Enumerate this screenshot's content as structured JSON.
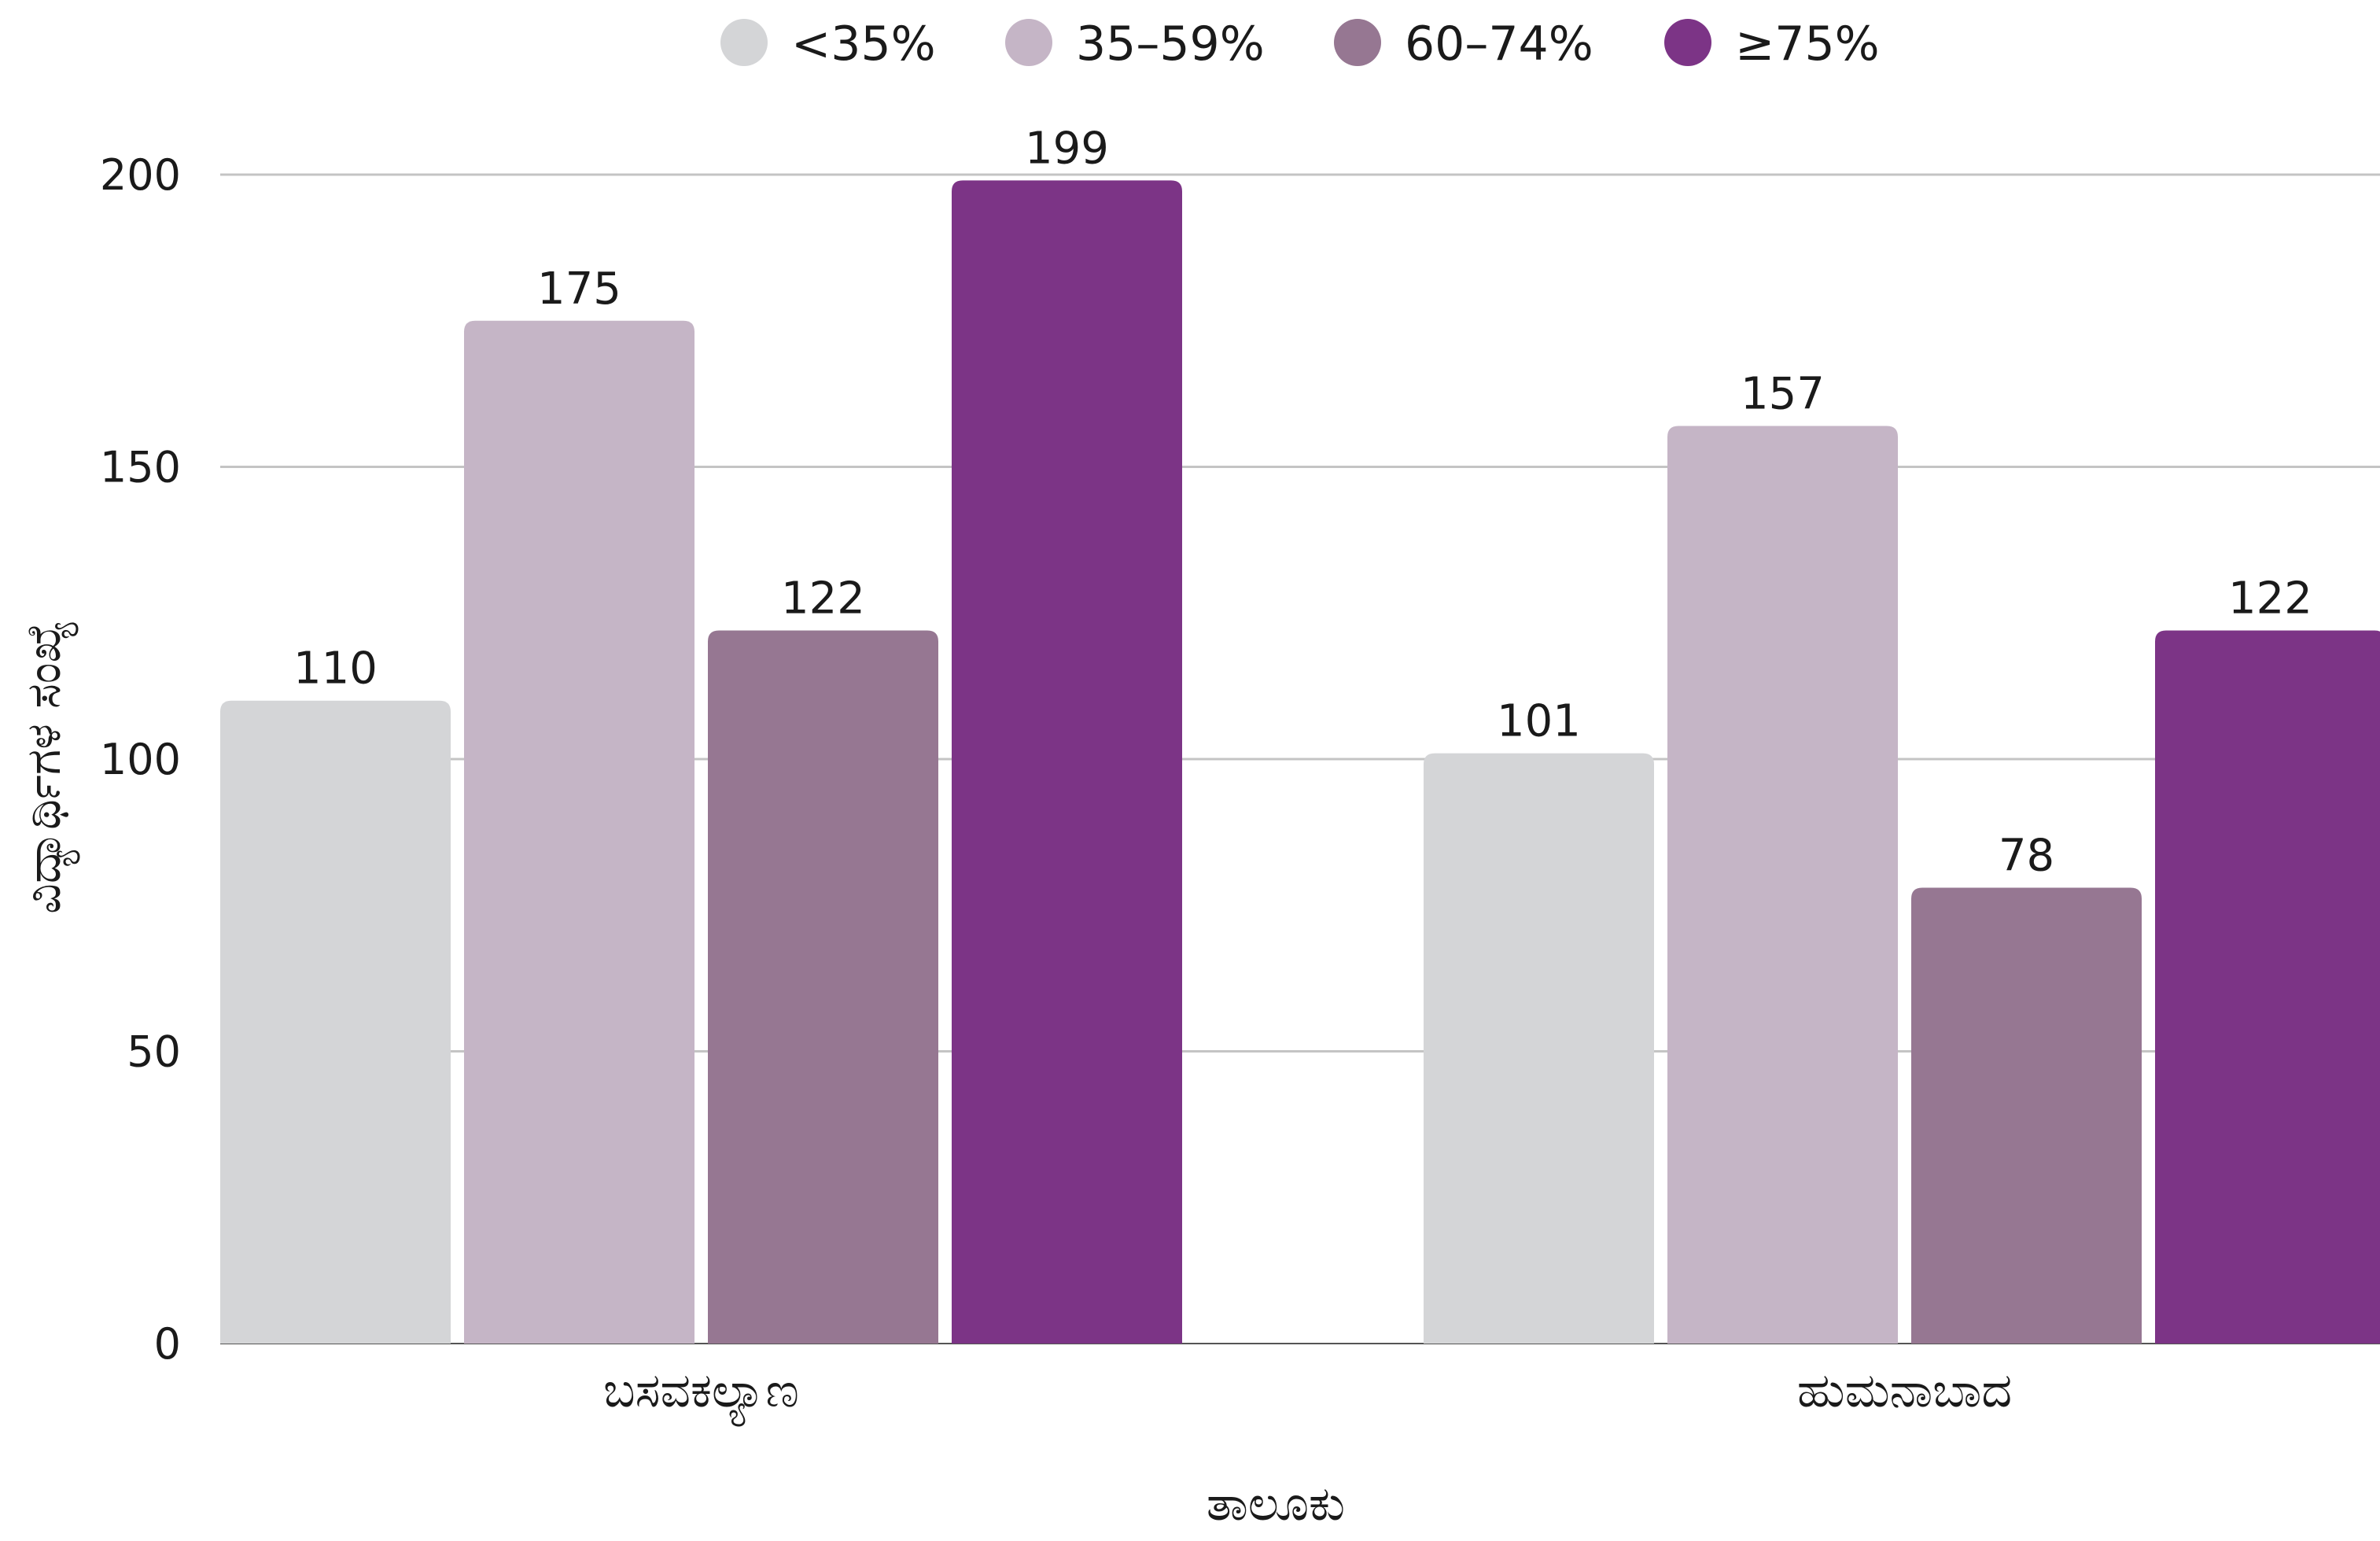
{
  "chart_data": {
    "type": "bar",
    "title": "",
    "xlabel": "ತಾಲೂಕು",
    "ylabel": "ವಿದ್ಯಾರ್ಥಿಗಳ ಸಂಖ್ಯೆ",
    "categories": [
      "ಬಸವಕಲ್ಯಾಣ",
      "ಹುಮನಾಬಾದ"
    ],
    "series": [
      {
        "name": "<35%",
        "color": "#d4d5d7",
        "values": [
          110,
          101
        ]
      },
      {
        "name": "35–59%",
        "color": "#c5b5c6",
        "values": [
          175,
          157
        ]
      },
      {
        "name": "60–74%",
        "color": "#967792",
        "values": [
          122,
          78
        ]
      },
      {
        "name": "≥75%",
        "color": "#7c3486",
        "values": [
          199,
          122
        ]
      }
    ],
    "ylim": [
      0,
      200
    ],
    "yticks": [
      0,
      50,
      100,
      150,
      200
    ],
    "grid": true,
    "legend_position": "top-center",
    "data_labels": true
  }
}
